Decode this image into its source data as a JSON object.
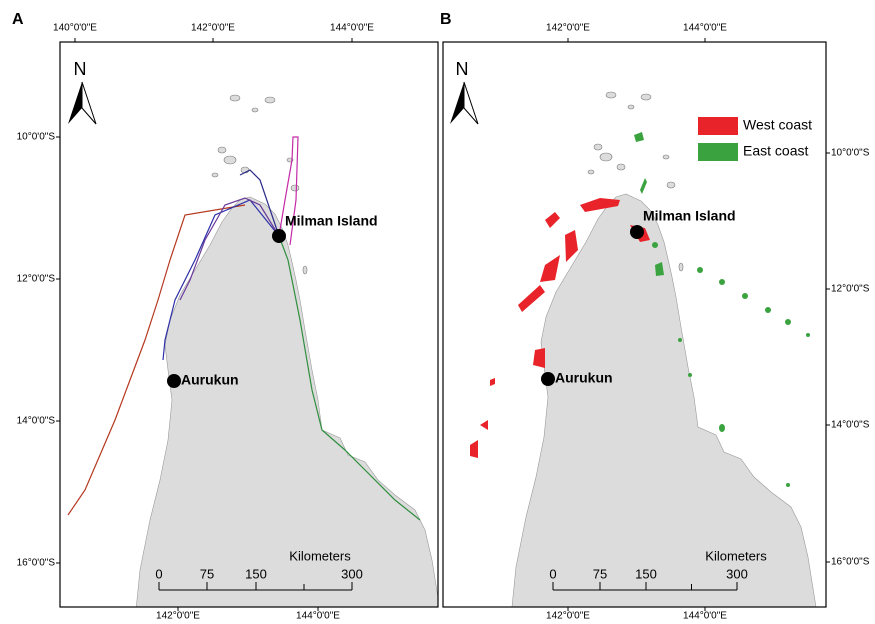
{
  "panels": [
    {
      "label": "A",
      "top_axis": [
        "140°0'0\"E",
        "142°0'0\"E",
        "144°0'0\"E"
      ],
      "bottom_axis": [
        "142°0'0\"E",
        "144°0'0\"E"
      ],
      "left_axis": [
        "10°0'0\"S",
        "12°0'0\"S",
        "14°0'0\"S",
        "16°0'0\"S"
      ],
      "north": "N",
      "places": [
        "Milman Island",
        "Aurukun"
      ],
      "scale": {
        "title": "Kilometers",
        "ticks": [
          "0",
          "75",
          "150",
          "300"
        ]
      }
    },
    {
      "label": "B",
      "top_axis": [
        "142°0'0\"E",
        "144°0'0\"E"
      ],
      "bottom_axis": [
        "142°0'0\"E",
        "144°0'0\"E"
      ],
      "right_axis": [
        "10°0'0\"S",
        "12°0'0\"S",
        "14°0'0\"S",
        "16°0'0\"S"
      ],
      "north": "N",
      "places": [
        "Milman Island",
        "Aurukun"
      ],
      "scale": {
        "title": "Kilometers",
        "ticks": [
          "0",
          "75",
          "150",
          "300"
        ]
      },
      "legend": [
        "West coast",
        "East coast"
      ]
    }
  ]
}
